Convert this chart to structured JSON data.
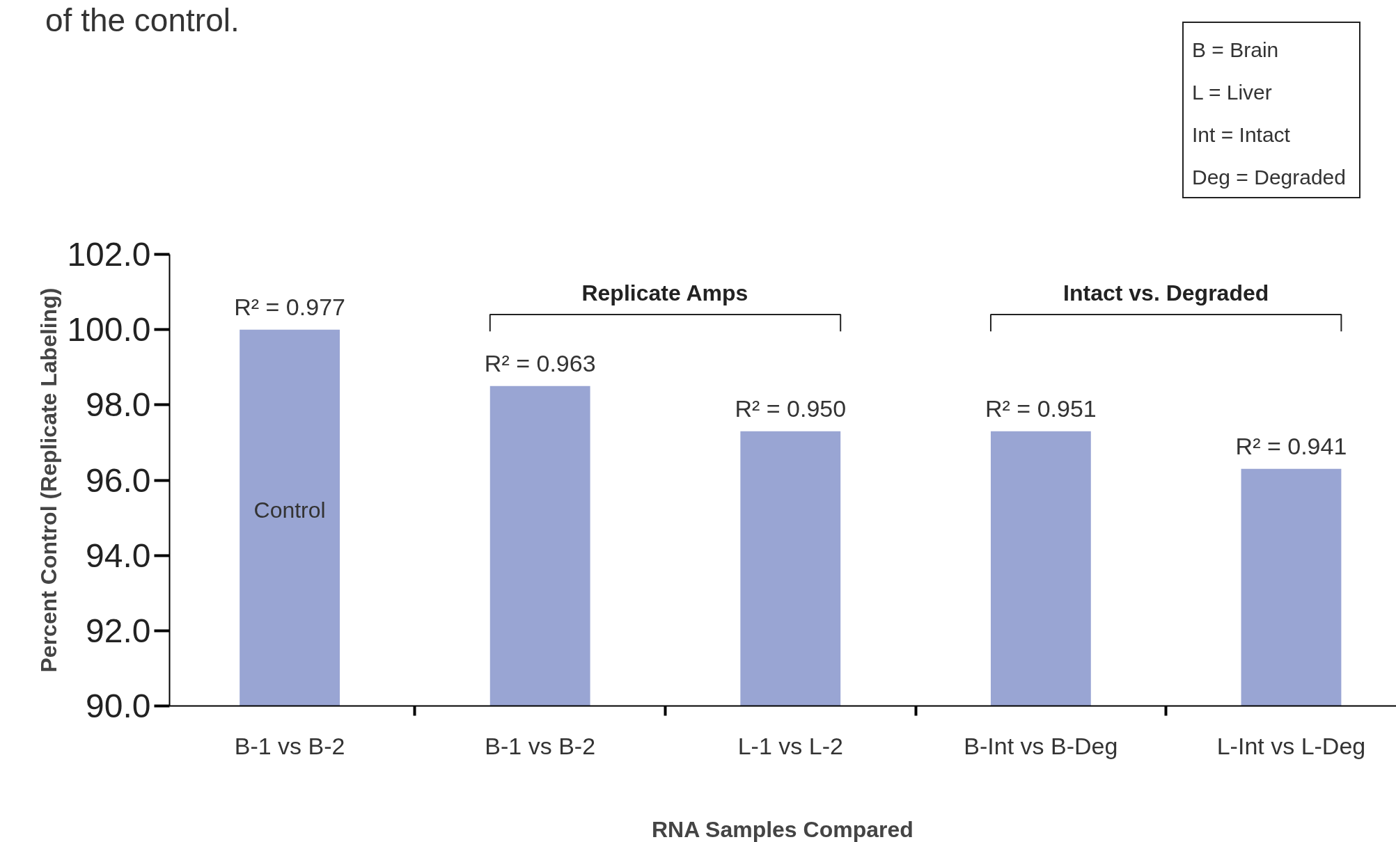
{
  "chart_data": {
    "type": "bar",
    "xlabel": "RNA Samples Compared",
    "ylabel": "Percent Control (Replicate Labeling)",
    "categories": [
      "B-1 vs B-2",
      "B-1 vs B-2",
      "L-1 vs L-2",
      "B-Int vs B-Deg",
      "L-Int vs L-Deg"
    ],
    "values": [
      100.0,
      98.5,
      97.3,
      97.3,
      96.3
    ],
    "color": "#99a5d3",
    "ylim": [
      90,
      102
    ],
    "yticks": [
      {
        "value": 90,
        "label": "90.0"
      },
      {
        "value": 92,
        "label": "92.0"
      },
      {
        "value": 94,
        "label": "94.0"
      },
      {
        "value": 96,
        "label": "96.0"
      },
      {
        "value": 98,
        "label": "98.0"
      },
      {
        "value": 100,
        "label": "100.0"
      },
      {
        "value": 102,
        "label": "102.0"
      }
    ],
    "grid": false,
    "annotations": [
      "of the control.",
      "B = Brain",
      "L = Liver",
      "Int = Intact",
      "Deg = Degraded",
      "Control",
      "Replicate Amps",
      "Intact vs. Degraded",
      "R² = 0.977",
      "R² = 0.963",
      "R² = 0.950",
      "R² = 0.951",
      "R² = 0.941"
    ]
  }
}
